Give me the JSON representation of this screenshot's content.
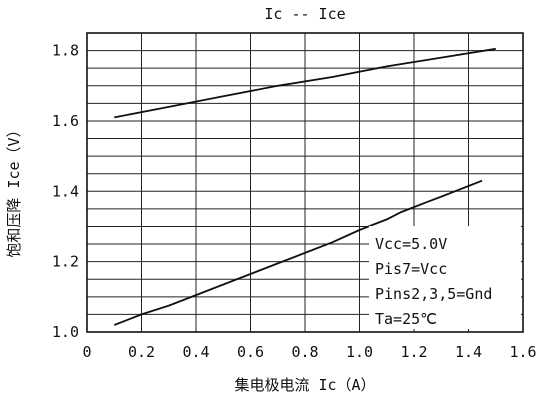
{
  "chart_data": {
    "type": "line",
    "title": "Ic -- Ice",
    "xlabel": "集电极电流 Ic（A）",
    "ylabel": "饱和压降 Ice（V）",
    "xlim": [
      0,
      1.6
    ],
    "ylim": [
      1.0,
      1.85
    ],
    "grid": true,
    "x_ticks": [
      "0",
      "0.2",
      "0.4",
      "0.6",
      "0.8",
      "1.0",
      "1.2",
      "1.4",
      "1.6"
    ],
    "y_ticks": [
      "1.0",
      "1.2",
      "1.4",
      "1.6",
      "1.8"
    ],
    "x_tick_values": [
      0,
      0.2,
      0.4,
      0.6,
      0.8,
      1.0,
      1.2,
      1.4,
      1.6
    ],
    "y_tick_values": [
      1.0,
      1.2,
      1.4,
      1.6,
      1.8
    ],
    "y_grid_values": [
      1.0,
      1.05,
      1.1,
      1.15,
      1.2,
      1.25,
      1.3,
      1.35,
      1.4,
      1.45,
      1.5,
      1.55,
      1.6,
      1.65,
      1.7,
      1.75,
      1.8,
      1.85
    ],
    "series": [
      {
        "values": [
          [
            0.1,
            1.61
          ],
          [
            0.3,
            1.64
          ],
          [
            0.5,
            1.67
          ],
          [
            0.7,
            1.7
          ],
          [
            0.9,
            1.725
          ],
          [
            1.1,
            1.755
          ],
          [
            1.3,
            1.78
          ],
          [
            1.5,
            1.805
          ]
        ]
      },
      {
        "values": [
          [
            0.1,
            1.02
          ],
          [
            0.2,
            1.05
          ],
          [
            0.3,
            1.075
          ],
          [
            0.4,
            1.105
          ],
          [
            0.5,
            1.135
          ],
          [
            0.6,
            1.165
          ],
          [
            0.7,
            1.195
          ],
          [
            0.8,
            1.225
          ],
          [
            0.9,
            1.255
          ],
          [
            1.0,
            1.29
          ],
          [
            1.1,
            1.32
          ],
          [
            1.15,
            1.34
          ],
          [
            1.2,
            1.355
          ],
          [
            1.25,
            1.37
          ],
          [
            1.3,
            1.385
          ],
          [
            1.35,
            1.4
          ],
          [
            1.4,
            1.415
          ],
          [
            1.45,
            1.43
          ]
        ]
      }
    ],
    "annotations": [
      "Vcc=5.0V",
      "Pis7=Vcc",
      "Pins2,3,5=Gnd",
      "Ta=25℃"
    ]
  }
}
